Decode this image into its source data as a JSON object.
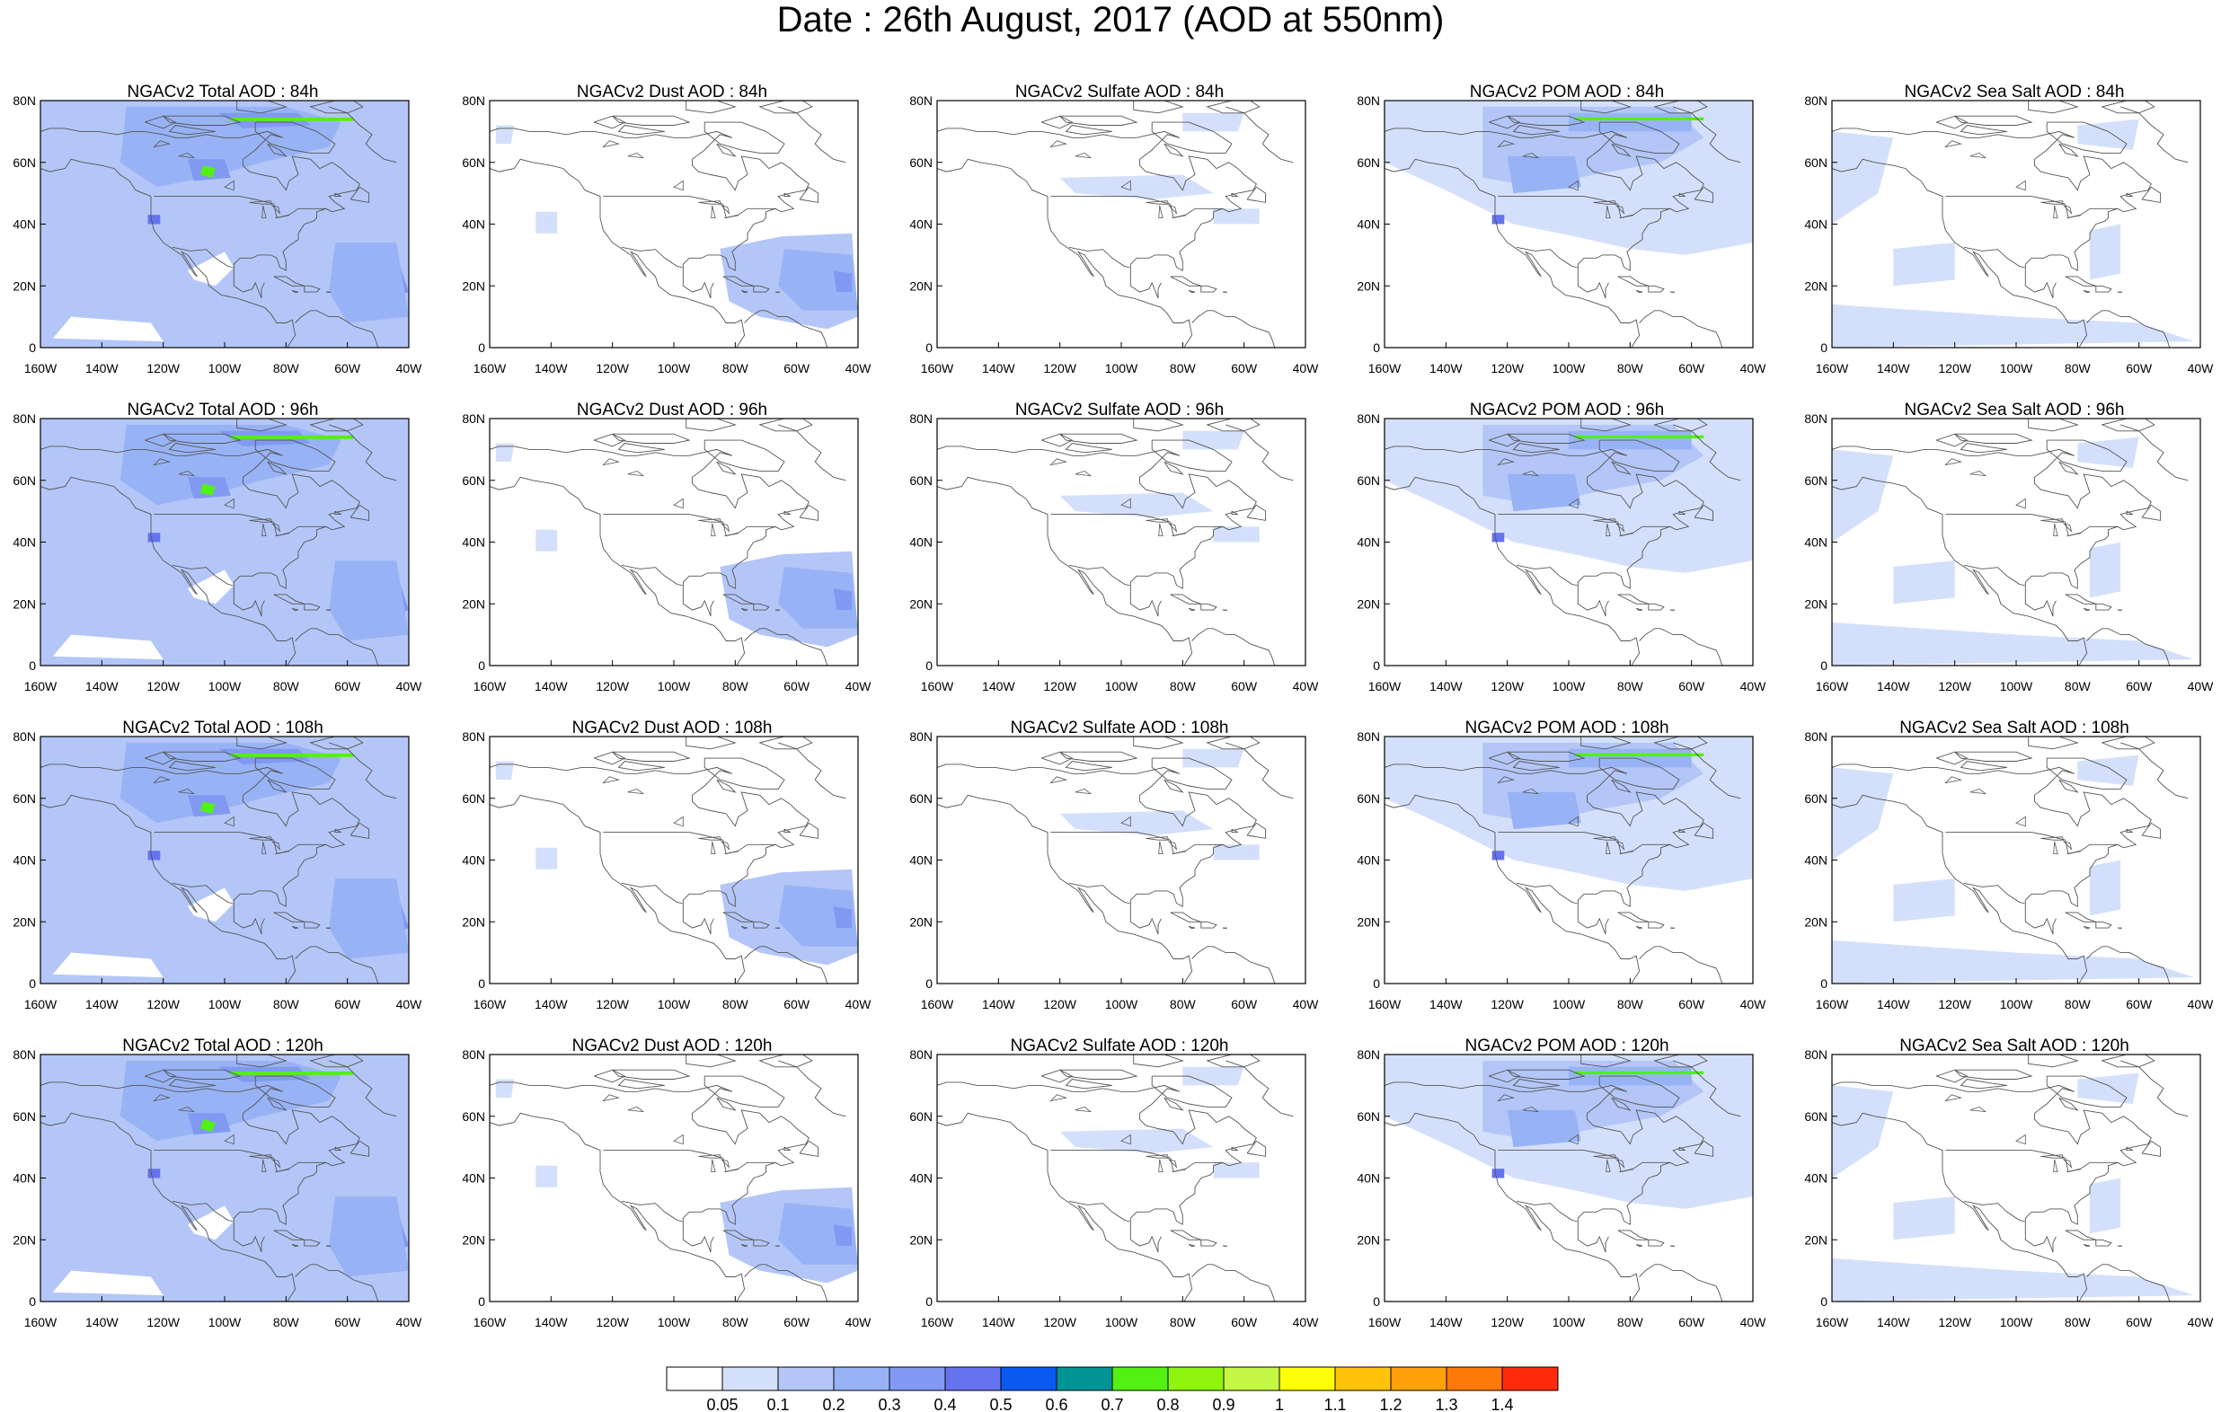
{
  "title": "Date : 26th August, 2017 (AOD at 550nm)",
  "colors": {
    "land_line": "#555555",
    "frame": "#000000",
    "background": "#ffffff"
  },
  "axes": {
    "x_ticks": [
      "160W",
      "140W",
      "120W",
      "100W",
      "80W",
      "60W",
      "40W"
    ],
    "y_ticks": [
      "80N",
      "60N",
      "40N",
      "20N",
      "0"
    ],
    "lon_range": [
      -160,
      -40
    ],
    "lat_range": [
      0,
      80
    ]
  },
  "columns": [
    {
      "species": "total",
      "titles": [
        "NGACv2 Total AOD : 84h",
        "NGACv2 Total AOD : 96h",
        "NGACv2 Total AOD : 108h",
        "NGACv2 Total AOD : 120h"
      ]
    },
    {
      "species": "dust",
      "titles": [
        "NGACv2 Dust AOD : 84h",
        "NGACv2 Dust AOD : 96h",
        "NGACv2 Dust AOD : 108h",
        "NGACv2 Dust AOD : 120h"
      ]
    },
    {
      "species": "sulfate",
      "titles": [
        "NGACv2 Sulfate AOD : 84h",
        "NGACv2 Sulfate AOD : 96h",
        "NGACv2 Sulfate AOD : 108h",
        "NGACv2 Sulfate AOD : 120h"
      ]
    },
    {
      "species": "pom",
      "titles": [
        "NGACv2 POM AOD : 84h",
        "NGACv2 POM AOD : 96h",
        "NGACv2 POM AOD : 108h",
        "NGACv2 POM AOD : 120h"
      ]
    },
    {
      "species": "seasalt",
      "titles": [
        "NGACv2 Sea Salt AOD : 84h",
        "NGACv2 Sea Salt AOD : 96h",
        "NGACv2 Sea Salt AOD : 108h",
        "NGACv2 Sea Salt  AOD : 120h"
      ]
    }
  ],
  "legend": {
    "labels": [
      "0.05",
      "0.1",
      "0.2",
      "0.3",
      "0.4",
      "0.5",
      "0.6",
      "0.7",
      "0.8",
      "0.9",
      "1",
      "1.1",
      "1.2",
      "1.3",
      "1.4"
    ],
    "colors": [
      "#ffffff",
      "#d4e0fb",
      "#b3c6f7",
      "#98b3f5",
      "#8199f3",
      "#6673ef",
      "#0a5af2",
      "#009494",
      "#53f013",
      "#8ff50f",
      "#c4f743",
      "#ffff0a",
      "#ffc40a",
      "#ffa10a",
      "#ff790a",
      "#ff2a0a"
    ]
  }
}
